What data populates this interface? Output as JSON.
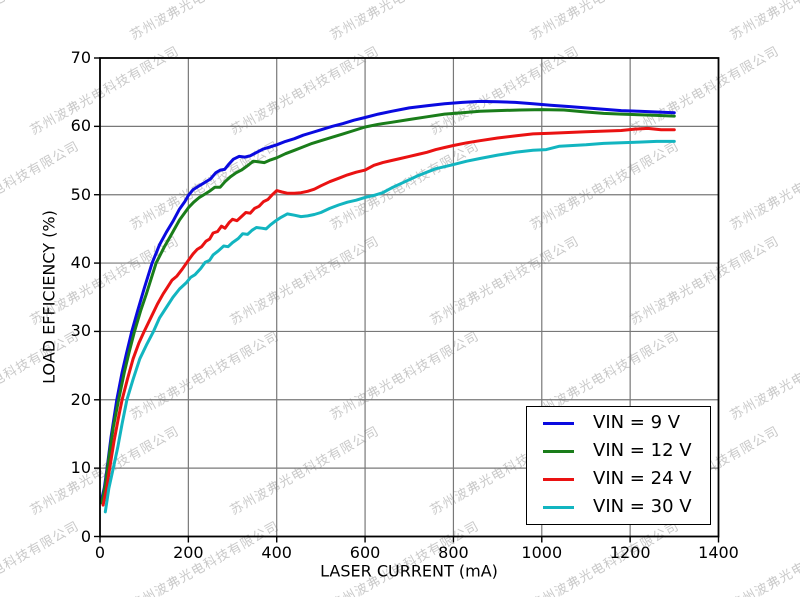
{
  "watermark": {
    "text": "苏州波弗光电科技有限公司",
    "color": "#c9c9c9"
  },
  "chart_data": {
    "type": "line",
    "title": "",
    "xlabel": "LASER CURRENT (mA)",
    "ylabel": "LOAD EFFICIENCY (%)",
    "xlim": [
      0,
      1400
    ],
    "ylim": [
      0,
      70
    ],
    "x_ticks": [
      0,
      200,
      400,
      600,
      800,
      1000,
      1200,
      1400
    ],
    "y_ticks": [
      0,
      10,
      20,
      30,
      40,
      50,
      60,
      70
    ],
    "grid": true,
    "grid_color": "#787878",
    "axis_color": "#000000",
    "legend_position": "lower-right-inside",
    "series": [
      {
        "name": "VIN = 9 V",
        "color": "#0a0ae0",
        "points": [
          [
            3,
            5.2
          ],
          [
            10,
            7.2
          ],
          [
            16,
            10
          ],
          [
            25,
            14.5
          ],
          [
            38,
            20
          ],
          [
            50,
            24
          ],
          [
            60,
            26.8
          ],
          [
            72,
            30
          ],
          [
            85,
            33
          ],
          [
            100,
            36.3
          ],
          [
            118,
            40
          ],
          [
            135,
            42.7
          ],
          [
            150,
            44.5
          ],
          [
            165,
            46.1
          ],
          [
            180,
            47.9
          ],
          [
            192,
            49.0
          ],
          [
            200,
            49.9
          ],
          [
            210,
            50.7
          ],
          [
            222,
            51.2
          ],
          [
            235,
            51.7
          ],
          [
            250,
            52.3
          ],
          [
            262,
            53.2
          ],
          [
            272,
            53.6
          ],
          [
            282,
            53.7
          ],
          [
            292,
            54.5
          ],
          [
            302,
            55.2
          ],
          [
            315,
            55.6
          ],
          [
            328,
            55.5
          ],
          [
            340,
            55.7
          ],
          [
            355,
            56.2
          ],
          [
            370,
            56.7
          ],
          [
            385,
            57.0
          ],
          [
            400,
            57.3
          ],
          [
            420,
            57.8
          ],
          [
            440,
            58.2
          ],
          [
            460,
            58.7
          ],
          [
            480,
            59.1
          ],
          [
            500,
            59.5
          ],
          [
            525,
            60.0
          ],
          [
            550,
            60.4
          ],
          [
            575,
            60.9
          ],
          [
            600,
            61.3
          ],
          [
            630,
            61.8
          ],
          [
            660,
            62.2
          ],
          [
            700,
            62.7
          ],
          [
            740,
            63.0
          ],
          [
            780,
            63.3
          ],
          [
            820,
            63.5
          ],
          [
            860,
            63.65
          ],
          [
            900,
            63.6
          ],
          [
            940,
            63.5
          ],
          [
            980,
            63.3
          ],
          [
            1020,
            63.1
          ],
          [
            1060,
            62.9
          ],
          [
            1100,
            62.7
          ],
          [
            1140,
            62.5
          ],
          [
            1180,
            62.3
          ],
          [
            1220,
            62.2
          ],
          [
            1260,
            62.1
          ],
          [
            1300,
            62.0
          ]
        ]
      },
      {
        "name": "VIN = 12 V",
        "color": "#1a7d1a",
        "points": [
          [
            4,
            4.9
          ],
          [
            12,
            7.5
          ],
          [
            20,
            11.5
          ],
          [
            30,
            16
          ],
          [
            42,
            20
          ],
          [
            55,
            24
          ],
          [
            66,
            27
          ],
          [
            78,
            30
          ],
          [
            92,
            33
          ],
          [
            105,
            35.5
          ],
          [
            127,
            40
          ],
          [
            145,
            42.3
          ],
          [
            160,
            44
          ],
          [
            180,
            46.3
          ],
          [
            200,
            48.1
          ],
          [
            212,
            48.9
          ],
          [
            225,
            49.6
          ],
          [
            238,
            50.1
          ],
          [
            250,
            50.6
          ],
          [
            260,
            51.1
          ],
          [
            272,
            51.1
          ],
          [
            283,
            51.9
          ],
          [
            295,
            52.6
          ],
          [
            308,
            53.2
          ],
          [
            320,
            53.6
          ],
          [
            333,
            54.2
          ],
          [
            347,
            54.9
          ],
          [
            360,
            54.8
          ],
          [
            372,
            54.7
          ],
          [
            386,
            55.1
          ],
          [
            400,
            55.4
          ],
          [
            420,
            56.0
          ],
          [
            440,
            56.5
          ],
          [
            460,
            57.0
          ],
          [
            480,
            57.5
          ],
          [
            500,
            57.9
          ],
          [
            525,
            58.4
          ],
          [
            550,
            58.9
          ],
          [
            575,
            59.4
          ],
          [
            600,
            59.9
          ],
          [
            630,
            60.3
          ],
          [
            660,
            60.6
          ],
          [
            700,
            61.0
          ],
          [
            740,
            61.4
          ],
          [
            780,
            61.8
          ],
          [
            820,
            62.0
          ],
          [
            860,
            62.2
          ],
          [
            900,
            62.3
          ],
          [
            950,
            62.4
          ],
          [
            1000,
            62.45
          ],
          [
            1050,
            62.4
          ],
          [
            1100,
            62.1
          ],
          [
            1140,
            61.9
          ],
          [
            1180,
            61.8
          ],
          [
            1220,
            61.7
          ],
          [
            1260,
            61.6
          ],
          [
            1300,
            61.5
          ]
        ]
      },
      {
        "name": "VIN = 24 V",
        "color": "#ea1212",
        "points": [
          [
            7,
            4.6
          ],
          [
            15,
            7
          ],
          [
            22,
            10
          ],
          [
            32,
            14
          ],
          [
            42,
            17.5
          ],
          [
            50,
            20
          ],
          [
            62,
            23
          ],
          [
            75,
            26
          ],
          [
            88,
            28.3
          ],
          [
            100,
            30
          ],
          [
            115,
            32
          ],
          [
            130,
            34
          ],
          [
            143,
            35.5
          ],
          [
            152,
            36.4
          ],
          [
            163,
            37.5
          ],
          [
            174,
            38.1
          ],
          [
            186,
            39.1
          ],
          [
            200,
            40.4
          ],
          [
            210,
            41.3
          ],
          [
            220,
            42.0
          ],
          [
            230,
            42.4
          ],
          [
            240,
            43.2
          ],
          [
            248,
            43.5
          ],
          [
            256,
            44.4
          ],
          [
            266,
            44.6
          ],
          [
            275,
            45.4
          ],
          [
            283,
            45.1
          ],
          [
            292,
            45.9
          ],
          [
            300,
            46.4
          ],
          [
            310,
            46.2
          ],
          [
            320,
            46.8
          ],
          [
            330,
            47.4
          ],
          [
            340,
            47.3
          ],
          [
            350,
            48.0
          ],
          [
            360,
            48.3
          ],
          [
            370,
            49.0
          ],
          [
            380,
            49.3
          ],
          [
            390,
            50.0
          ],
          [
            400,
            50.6
          ],
          [
            412,
            50.4
          ],
          [
            425,
            50.2
          ],
          [
            440,
            50.2
          ],
          [
            455,
            50.3
          ],
          [
            470,
            50.5
          ],
          [
            485,
            50.8
          ],
          [
            500,
            51.3
          ],
          [
            520,
            51.9
          ],
          [
            540,
            52.4
          ],
          [
            560,
            52.9
          ],
          [
            580,
            53.3
          ],
          [
            600,
            53.6
          ],
          [
            620,
            54.3
          ],
          [
            640,
            54.7
          ],
          [
            660,
            55.0
          ],
          [
            680,
            55.3
          ],
          [
            700,
            55.6
          ],
          [
            720,
            55.9
          ],
          [
            740,
            56.2
          ],
          [
            760,
            56.6
          ],
          [
            780,
            56.9
          ],
          [
            800,
            57.2
          ],
          [
            830,
            57.6
          ],
          [
            860,
            57.9
          ],
          [
            900,
            58.3
          ],
          [
            940,
            58.6
          ],
          [
            980,
            58.9
          ],
          [
            1020,
            59.0
          ],
          [
            1060,
            59.1
          ],
          [
            1100,
            59.2
          ],
          [
            1140,
            59.3
          ],
          [
            1180,
            59.4
          ],
          [
            1210,
            59.6
          ],
          [
            1240,
            59.7
          ],
          [
            1270,
            59.5
          ],
          [
            1300,
            59.5
          ]
        ]
      },
      {
        "name": "VIN = 30 V",
        "color": "#12b5c0",
        "points": [
          [
            12,
            3.6
          ],
          [
            20,
            7
          ],
          [
            30,
            10
          ],
          [
            40,
            13
          ],
          [
            50,
            16.5
          ],
          [
            61,
            20
          ],
          [
            75,
            23
          ],
          [
            90,
            26
          ],
          [
            105,
            28
          ],
          [
            121,
            30
          ],
          [
            135,
            32
          ],
          [
            150,
            33.5
          ],
          [
            165,
            35
          ],
          [
            180,
            36.2
          ],
          [
            195,
            37.1
          ],
          [
            205,
            37.9
          ],
          [
            215,
            38.3
          ],
          [
            228,
            39.2
          ],
          [
            238,
            40.1
          ],
          [
            248,
            40.4
          ],
          [
            256,
            41.2
          ],
          [
            268,
            41.8
          ],
          [
            280,
            42.5
          ],
          [
            290,
            42.4
          ],
          [
            300,
            43.0
          ],
          [
            313,
            43.6
          ],
          [
            323,
            44.3
          ],
          [
            334,
            44.2
          ],
          [
            344,
            44.8
          ],
          [
            354,
            45.2
          ],
          [
            366,
            45.1
          ],
          [
            376,
            45.0
          ],
          [
            386,
            45.6
          ],
          [
            396,
            46.1
          ],
          [
            410,
            46.7
          ],
          [
            424,
            47.2
          ],
          [
            440,
            47.0
          ],
          [
            455,
            46.8
          ],
          [
            470,
            46.9
          ],
          [
            485,
            47.1
          ],
          [
            500,
            47.4
          ],
          [
            520,
            48.0
          ],
          [
            540,
            48.5
          ],
          [
            560,
            48.9
          ],
          [
            580,
            49.2
          ],
          [
            600,
            49.6
          ],
          [
            620,
            49.9
          ],
          [
            640,
            50.3
          ],
          [
            660,
            51.0
          ],
          [
            680,
            51.6
          ],
          [
            700,
            52.2
          ],
          [
            720,
            52.8
          ],
          [
            740,
            53.3
          ],
          [
            760,
            53.8
          ],
          [
            780,
            54.1
          ],
          [
            800,
            54.4
          ],
          [
            830,
            54.9
          ],
          [
            860,
            55.3
          ],
          [
            900,
            55.8
          ],
          [
            940,
            56.2
          ],
          [
            980,
            56.5
          ],
          [
            1010,
            56.6
          ],
          [
            1040,
            57.1
          ],
          [
            1070,
            57.2
          ],
          [
            1100,
            57.3
          ],
          [
            1140,
            57.5
          ],
          [
            1180,
            57.6
          ],
          [
            1220,
            57.7
          ],
          [
            1260,
            57.8
          ],
          [
            1300,
            57.8
          ]
        ]
      }
    ]
  }
}
